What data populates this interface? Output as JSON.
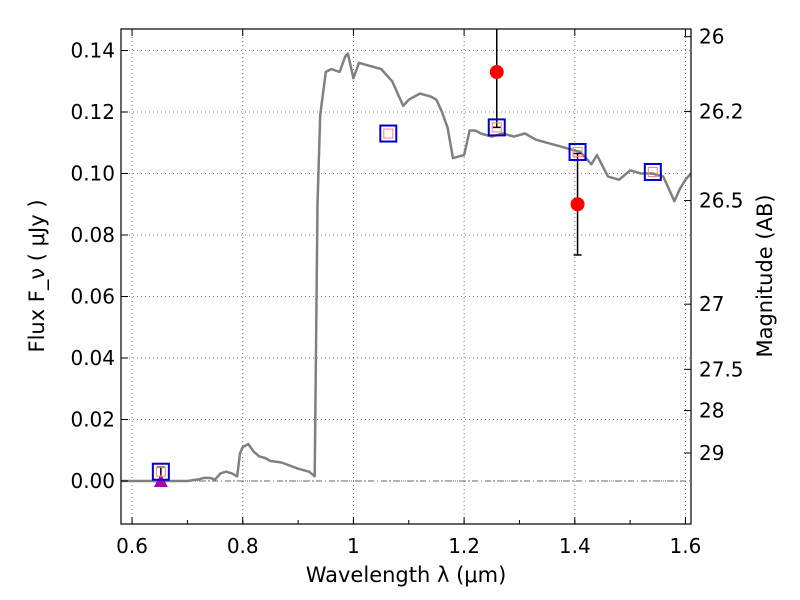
{
  "chart_data": {
    "type": "line",
    "xlabel": "Wavelength  λ (μm)",
    "ylabel": "Flux  F_ν  ( μJy )",
    "ylabel_right": "Magnitude (AB)",
    "xlim": [
      0.58,
      1.61
    ],
    "ylim": [
      -0.014,
      0.147
    ],
    "grid": true,
    "x_ticks": [
      0.6,
      0.8,
      1.0,
      1.2,
      1.4,
      1.6
    ],
    "x_tick_labels": [
      "0.6",
      "0.8",
      "1",
      "1.2",
      "1.4",
      "1.6"
    ],
    "y_ticks": [
      0.0,
      0.02,
      0.04,
      0.06,
      0.08,
      0.1,
      0.12,
      0.14
    ],
    "y_tick_labels": [
      "0.00",
      "0.02",
      "0.04",
      "0.06",
      "0.08",
      "0.10",
      "0.12",
      "0.14"
    ],
    "right_ticks": [
      {
        "label": "26",
        "flux": 0.1445
      },
      {
        "label": "26.2",
        "flux": 0.1202
      },
      {
        "label": "26.5",
        "flux": 0.0912
      },
      {
        "label": "27",
        "flux": 0.0575
      },
      {
        "label": "27.5",
        "flux": 0.0363
      },
      {
        "label": "28",
        "flux": 0.0229
      },
      {
        "label": "29",
        "flux": 0.0091
      }
    ],
    "zero_line": 0.0,
    "colors": {
      "model": "#808080",
      "model_photometry": "#0000cc",
      "observed": "#ff0000",
      "upper_limit": "#aa00aa",
      "errorbar": "#000000",
      "grid": "#555555"
    },
    "series": [
      {
        "x": [
          0.58,
          0.6,
          0.65,
          0.7,
          0.72,
          0.73,
          0.74,
          0.75,
          0.76,
          0.77,
          0.78,
          0.785,
          0.79,
          0.795,
          0.8,
          0.81,
          0.82,
          0.83,
          0.84,
          0.85,
          0.87,
          0.9,
          0.92,
          0.93,
          0.935,
          0.94,
          0.95,
          0.96,
          0.975,
          0.985,
          0.99,
          1.0,
          1.01,
          1.03,
          1.05,
          1.07,
          1.08,
          1.09,
          1.1,
          1.12,
          1.14,
          1.15,
          1.16,
          1.17,
          1.18,
          1.2,
          1.21,
          1.22,
          1.23,
          1.25,
          1.27,
          1.29,
          1.31,
          1.33,
          1.35,
          1.37,
          1.39,
          1.41,
          1.42,
          1.43,
          1.44,
          1.46,
          1.48,
          1.5,
          1.52,
          1.54,
          1.56,
          1.58,
          1.59,
          1.6,
          1.61
        ],
        "values": [
          0.0,
          0.0,
          0.0,
          0.0,
          0.0005,
          0.001,
          0.001,
          0.0005,
          0.0025,
          0.003,
          0.0025,
          0.002,
          0.0015,
          0.009,
          0.011,
          0.012,
          0.0095,
          0.008,
          0.0075,
          0.0065,
          0.006,
          0.004,
          0.003,
          0.0015,
          0.09,
          0.119,
          0.133,
          0.134,
          0.133,
          0.138,
          0.139,
          0.131,
          0.136,
          0.135,
          0.134,
          0.13,
          0.126,
          0.122,
          0.124,
          0.126,
          0.125,
          0.124,
          0.12,
          0.115,
          0.105,
          0.106,
          0.114,
          0.114,
          0.113,
          0.112,
          0.113,
          0.112,
          0.113,
          0.111,
          0.11,
          0.109,
          0.108,
          0.107,
          0.105,
          0.103,
          0.106,
          0.099,
          0.098,
          0.101,
          0.1,
          0.1,
          0.099,
          0.091,
          0.095,
          0.098,
          0.1
        ]
      }
    ],
    "model_photometry": [
      {
        "x": 0.652,
        "y": 0.003
      },
      {
        "x": 1.063,
        "y": 0.113
      },
      {
        "x": 1.259,
        "y": 0.115
      },
      {
        "x": 1.405,
        "y": 0.107
      },
      {
        "x": 1.541,
        "y": 0.1005
      }
    ],
    "observed_points": [
      {
        "x": 1.259,
        "y": 0.133,
        "yerr_low": 0.115,
        "yerr_high": 0.155
      },
      {
        "x": 1.405,
        "y": 0.09,
        "yerr_low": 0.0735,
        "yerr_high": 0.1065
      }
    ],
    "upper_limits": [
      {
        "x": 0.652,
        "y": 0.0,
        "bar_top": 0.0045
      }
    ]
  }
}
